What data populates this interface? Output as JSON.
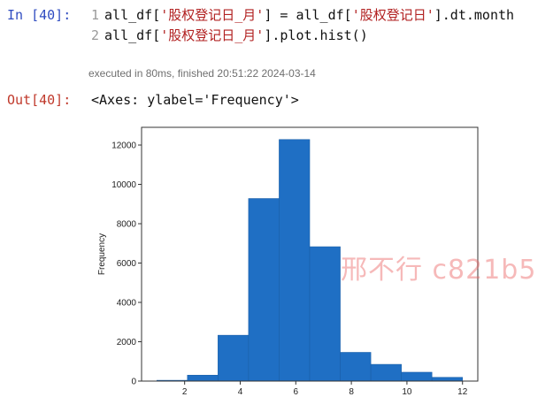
{
  "cell": {
    "in_prompt": "In [40]:",
    "code_lines": [
      {
        "num": "1",
        "parts": [
          {
            "t": "all_df[",
            "s": false
          },
          {
            "t": "'股权登记日_月'",
            "s": true
          },
          {
            "t": "] = all_df[",
            "s": false
          },
          {
            "t": "'股权登记日'",
            "s": true
          },
          {
            "t": "].dt.month",
            "s": false
          }
        ]
      },
      {
        "num": "2",
        "parts": [
          {
            "t": "all_df[",
            "s": false
          },
          {
            "t": "'股权登记日_月'",
            "s": true
          },
          {
            "t": "].plot.hist()",
            "s": false
          }
        ]
      }
    ],
    "exec_info": "executed in 80ms, finished 20:51:22 2024-03-14",
    "out_prompt": "Out[40]:",
    "out_text": "<Axes: ylabel='Frequency'>"
  },
  "watermark": "邢不行 c821b5",
  "colors": {
    "bar": "#1f6fc4",
    "prompt_in": "#2f4cc1",
    "prompt_out": "#c0392b",
    "string": "#b22222"
  },
  "chart_data": {
    "type": "bar",
    "title": "",
    "xlabel": "",
    "ylabel": "Frequency",
    "xlim": [
      0.45,
      12.55
    ],
    "ylim": [
      0,
      12900
    ],
    "xticks": [
      2,
      4,
      6,
      8,
      10,
      12
    ],
    "yticks": [
      0,
      2000,
      4000,
      6000,
      8000,
      10000,
      12000
    ],
    "bins": [
      {
        "x0": 1.0,
        "x1": 2.1,
        "value": 40
      },
      {
        "x0": 2.1,
        "x1": 3.2,
        "value": 300
      },
      {
        "x0": 3.2,
        "x1": 4.3,
        "value": 2330
      },
      {
        "x0": 4.3,
        "x1": 5.4,
        "value": 9280
      },
      {
        "x0": 5.4,
        "x1": 6.5,
        "value": 12280
      },
      {
        "x0": 6.5,
        "x1": 7.6,
        "value": 6830
      },
      {
        "x0": 7.6,
        "x1": 8.7,
        "value": 1460
      },
      {
        "x0": 8.7,
        "x1": 9.8,
        "value": 850
      },
      {
        "x0": 9.8,
        "x1": 10.9,
        "value": 450
      },
      {
        "x0": 10.9,
        "x1": 12.0,
        "value": 190
      }
    ]
  }
}
